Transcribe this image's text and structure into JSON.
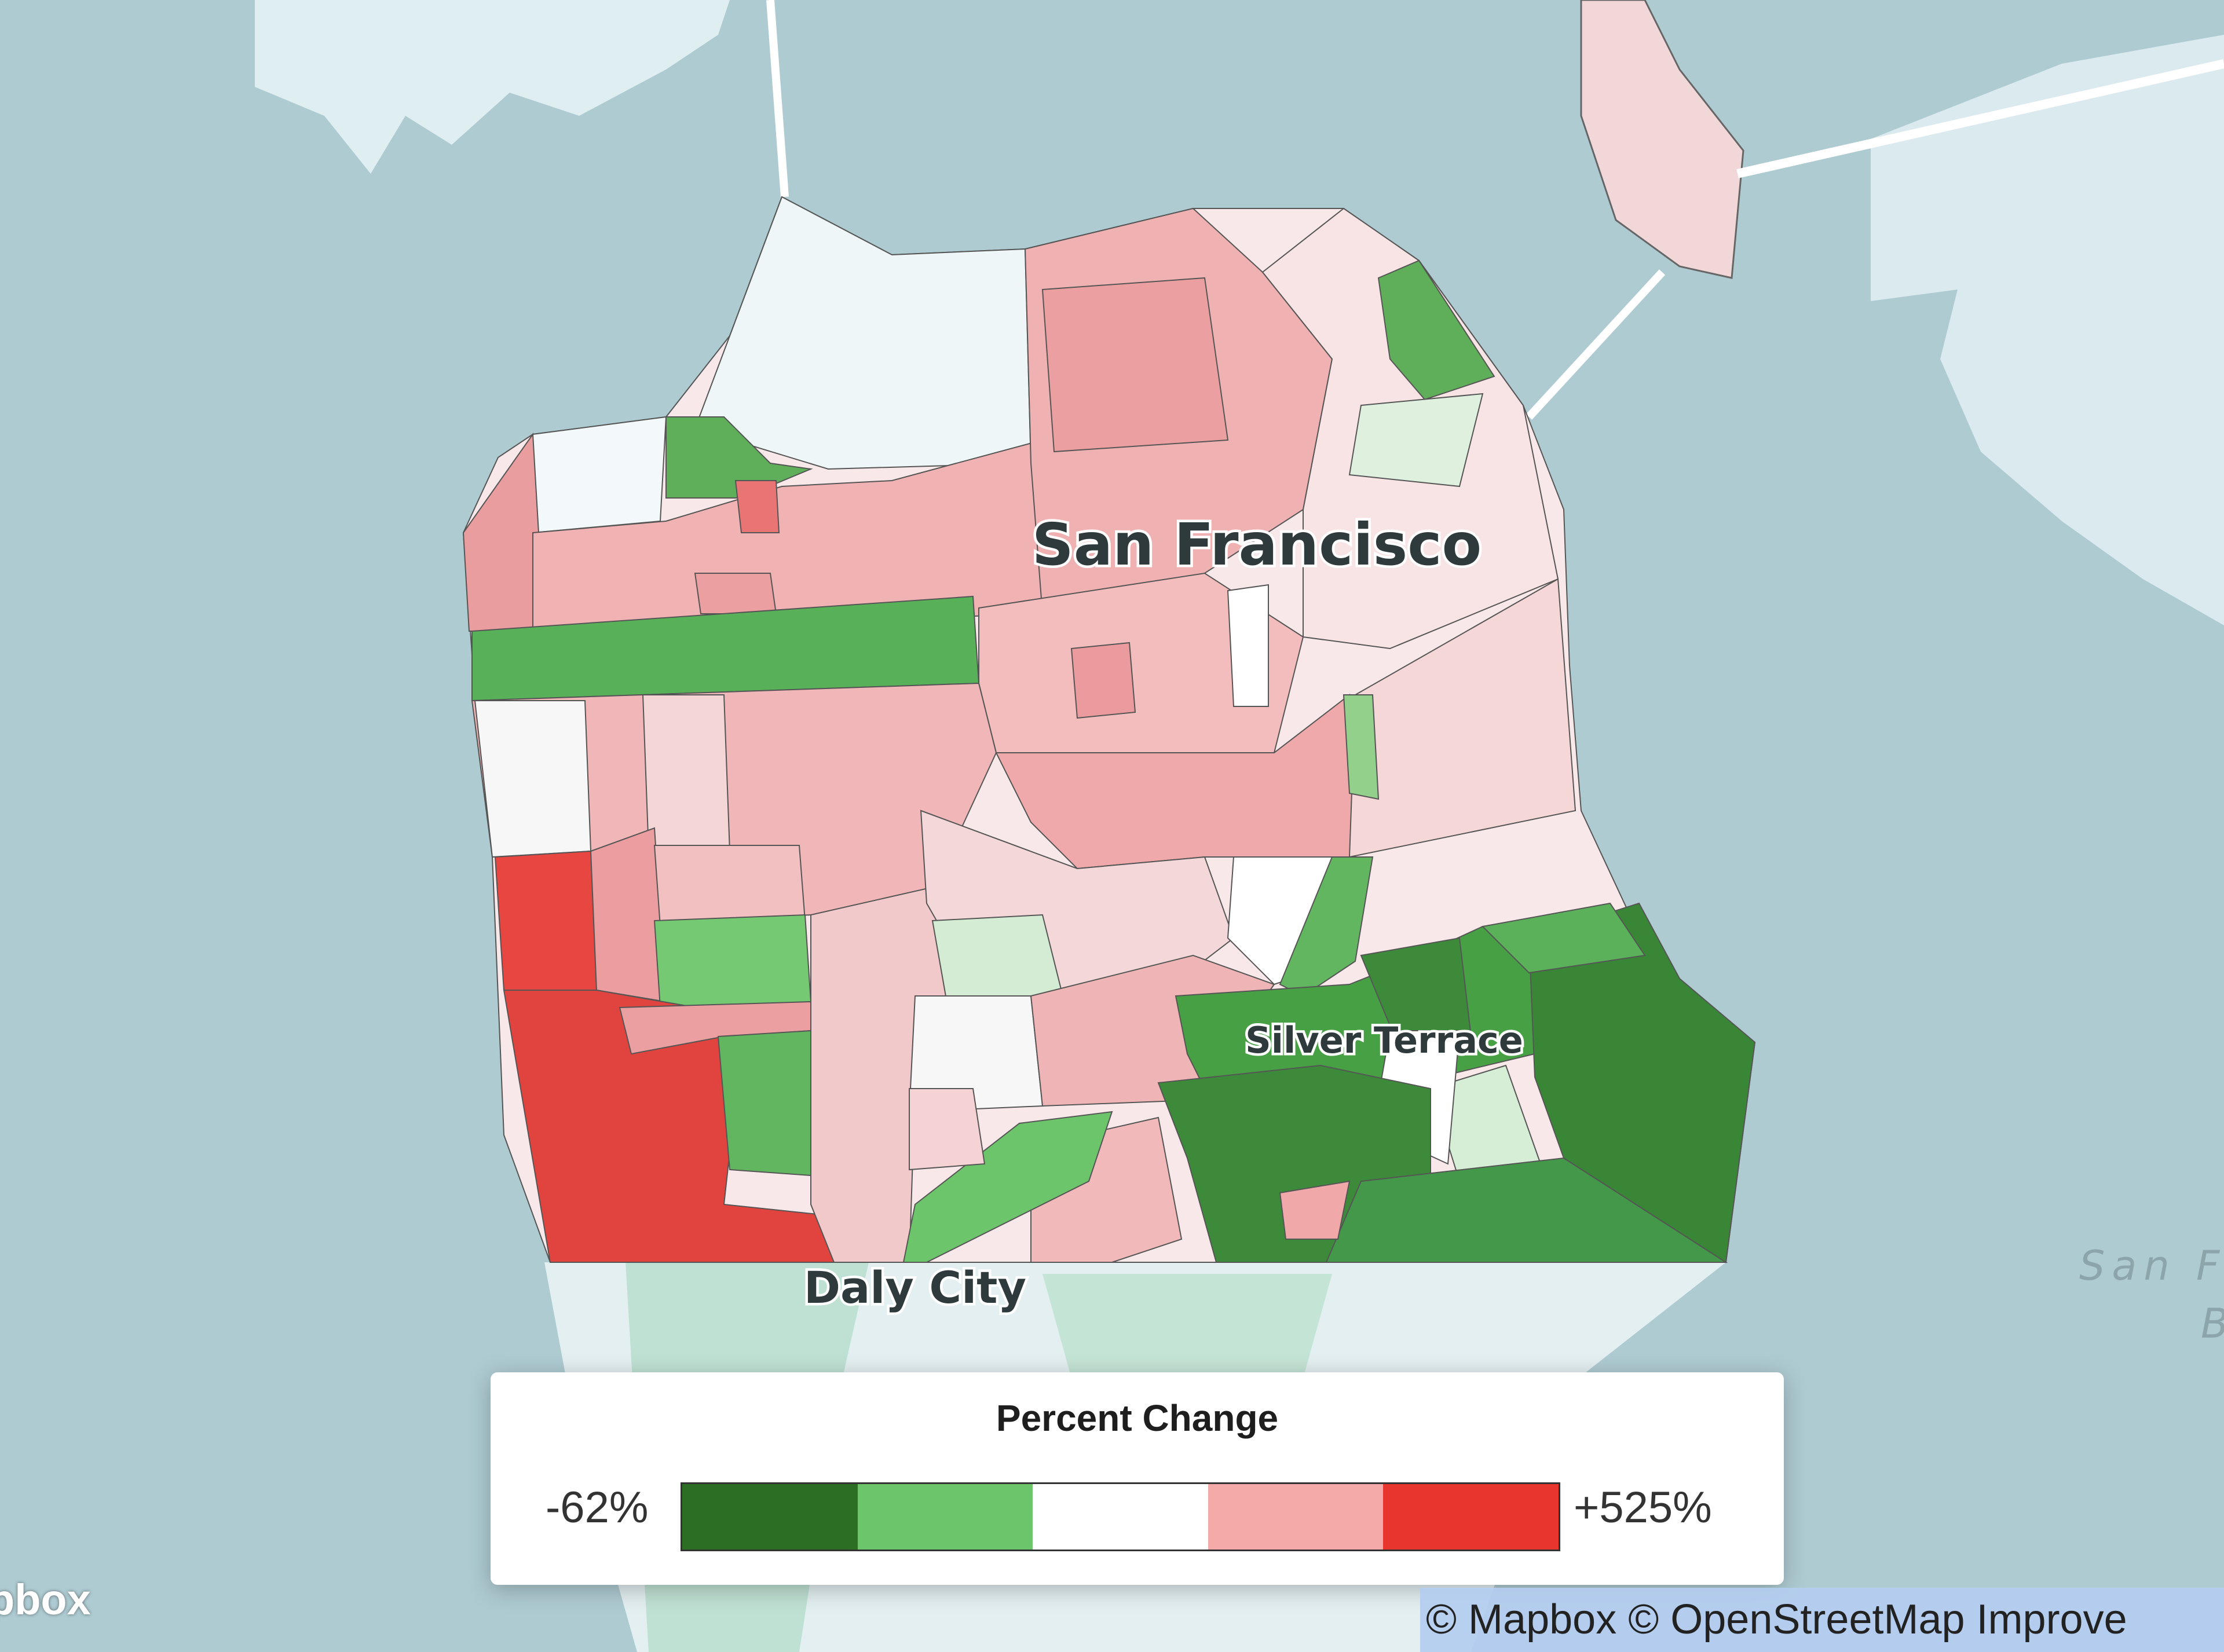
{
  "map": {
    "labels": {
      "city": "San Francisco",
      "neighborhood": "Silver Terrace",
      "south_city": "Daly City",
      "water_line1": "San Fr",
      "water_line2": "B"
    },
    "colors": {
      "water": "#aecbd2",
      "land": "#e7f2f3",
      "park": "#c8e6da"
    }
  },
  "legend": {
    "title": "Percent Change",
    "min_label": "-62%",
    "max_label": "+525%",
    "colors": [
      "#2c6e23",
      "#6cc56a",
      "#ffffff",
      "#f4aaa8",
      "#e8362f"
    ]
  },
  "attribution": {
    "text": "© Mapbox © OpenStreetMap Improve",
    "logo": "pbox"
  }
}
